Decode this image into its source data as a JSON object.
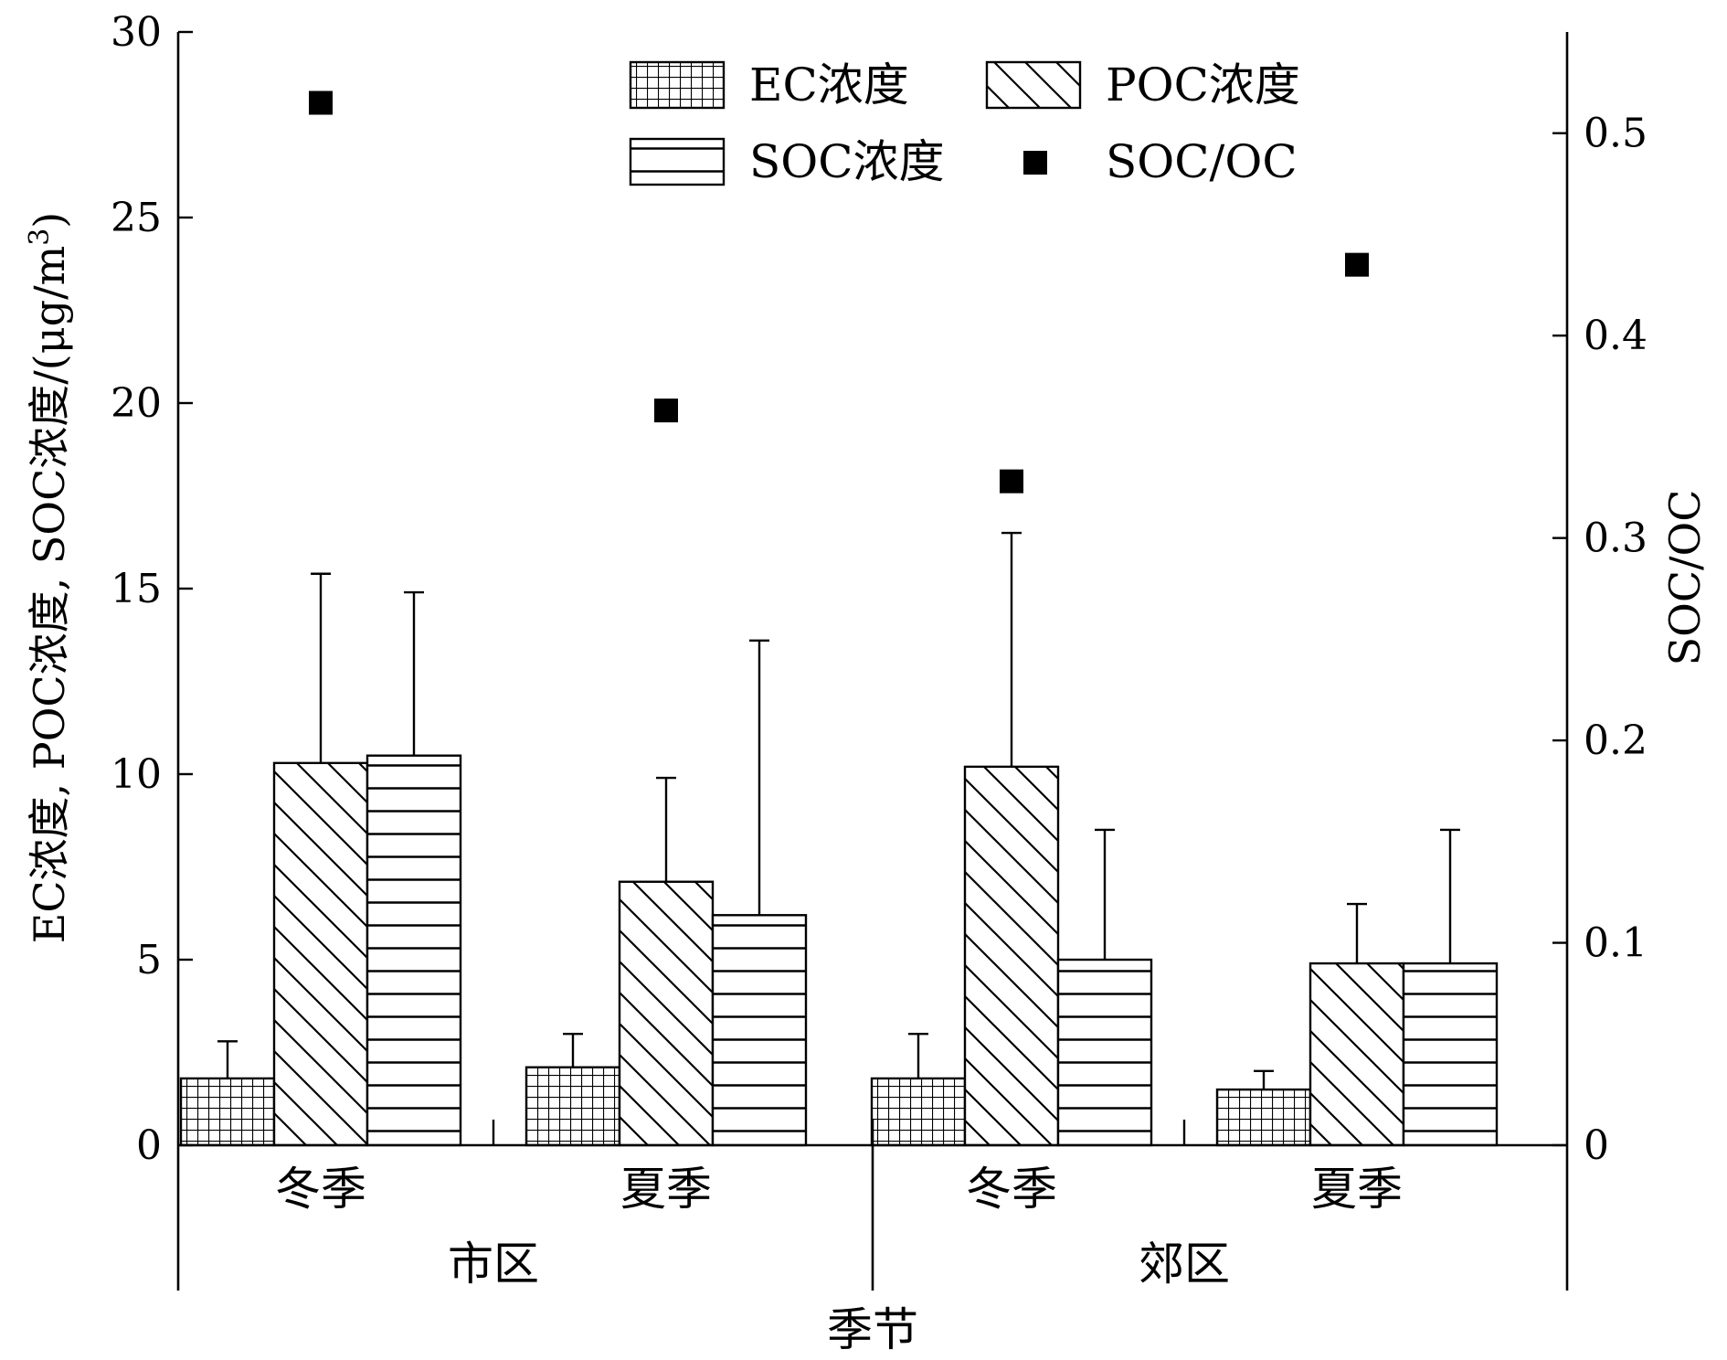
{
  "chart_data": {
    "type": "bar",
    "groups": [
      "市区",
      "郊区"
    ],
    "categories": [
      "冬季",
      "夏季",
      "冬季",
      "夏季"
    ],
    "category_group": [
      0,
      0,
      1,
      1
    ],
    "xlabel": "季节",
    "ylabel": "EC浓度, POC浓度, SOC浓度/(μg/m",
    "ylabel_sup": "3",
    "ylabel_close": ")",
    "y2label": "SOC/OC",
    "ylim": [
      0,
      30
    ],
    "yticks": [
      "0",
      "5",
      "10",
      "15",
      "20",
      "25",
      "30"
    ],
    "y2lim": [
      0,
      0.55
    ],
    "y2ticks": [
      "0",
      "0.1",
      "0.2",
      "0.3",
      "0.4",
      "0.5"
    ],
    "series": [
      {
        "name": "EC浓度",
        "pattern": "grid",
        "values": [
          1.8,
          2.1,
          1.8,
          1.5
        ],
        "errors": [
          1.0,
          0.9,
          1.2,
          0.5
        ]
      },
      {
        "name": "POC浓度",
        "pattern": "diagonal",
        "values": [
          10.3,
          7.1,
          10.2,
          4.9
        ],
        "errors": [
          5.1,
          2.8,
          6.3,
          1.6
        ]
      },
      {
        "name": "SOC浓度",
        "pattern": "horizontal",
        "values": [
          10.5,
          6.2,
          5.0,
          4.9
        ],
        "errors": [
          4.4,
          7.4,
          3.5,
          3.6
        ]
      }
    ],
    "scatter": {
      "name": "SOC/OC",
      "axis": "right",
      "values": [
        0.515,
        0.363,
        0.328,
        0.435
      ]
    },
    "legend": "top-center"
  }
}
